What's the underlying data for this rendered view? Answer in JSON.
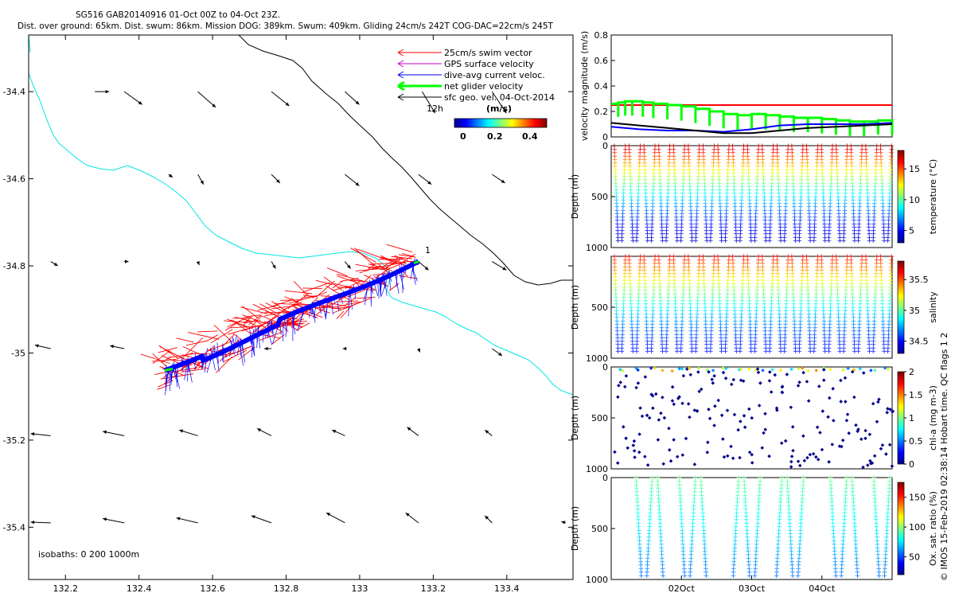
{
  "header": {
    "title_line1": "SG516 GAB20140916 01-Oct 00Z to 04-Oct 23Z.",
    "title_line2": "Dist. over ground: 65km. Dist. swum: 86km. Mission DOG: 389km. Swum: 409km. Gliding 24cm/s 242T COG-DAC=22cm/s 245T"
  },
  "footer": {
    "credit": "© IMOS 15-Feb-2019 02:38:14 Hobart time. QC flags 1  2"
  },
  "colors": {
    "swim_vector": "#ff0000",
    "gps_surface_velocity": "#cc00cc",
    "dive_avg_current": "#0000ff",
    "net_glider_velocity": "#00ff00",
    "geostrophic_velocity": "#000000",
    "isobath_0m": "#000000",
    "isobath_200m": "#00e6e6"
  },
  "chart_data": [
    {
      "id": "map",
      "type": "scatter",
      "title": "SG516 GAB20140916 01-Oct 00Z to 04-Oct 23Z.",
      "xlabel": "",
      "ylabel": "",
      "xlim": [
        132.1,
        133.58
      ],
      "ylim": [
        -35.52,
        -34.27
      ],
      "x_ticks": [
        "132.2",
        "132.4",
        "132.6",
        "132.8",
        "133",
        "133.2",
        "133.4"
      ],
      "y_ticks": [
        "-34.4",
        "-34.6",
        "-34.8",
        "-35",
        "-35.2",
        "-35.4"
      ],
      "legend": {
        "placement": "top-right",
        "entries": [
          "25cm/s swim vector",
          "GPS surface velocity",
          "dive-avg current veloc.",
          "net glider velocity",
          "sfc geo. vel. 04-Oct-2014"
        ]
      },
      "scale_label": "12h",
      "colorbar": {
        "label": "(m/s)",
        "ticks": [
          "0",
          "0.2",
          "0.4"
        ],
        "range": [
          0,
          0.5
        ]
      },
      "isobath_label": "isobaths: 0   200   1000m",
      "track_start_label": "1",
      "track": {
        "start": [
          133.16,
          -34.79
        ],
        "end": [
          132.47,
          -35.04
        ]
      },
      "geo_vectors": [
        {
          "x": 132.28,
          "y": -34.4,
          "u": 0.2,
          "v": 0.0
        },
        {
          "x": 132.36,
          "y": -34.4,
          "u": 0.25,
          "v": -0.18
        },
        {
          "x": 132.56,
          "y": -34.4,
          "u": 0.25,
          "v": -0.22
        },
        {
          "x": 132.76,
          "y": -34.4,
          "u": 0.25,
          "v": -0.2
        },
        {
          "x": 132.96,
          "y": -34.4,
          "u": 0.2,
          "v": -0.18
        },
        {
          "x": 133.17,
          "y": -34.4,
          "u": 0.18,
          "v": -0.3
        },
        {
          "x": 133.36,
          "y": -34.4,
          "u": 0.2,
          "v": -0.3
        },
        {
          "x": 132.48,
          "y": -34.59,
          "u": 0.06,
          "v": -0.04
        },
        {
          "x": 132.56,
          "y": -34.59,
          "u": 0.08,
          "v": -0.14
        },
        {
          "x": 132.76,
          "y": -34.59,
          "u": 0.12,
          "v": -0.12
        },
        {
          "x": 132.96,
          "y": -34.59,
          "u": 0.2,
          "v": -0.16
        },
        {
          "x": 133.16,
          "y": -34.59,
          "u": 0.18,
          "v": -0.14
        },
        {
          "x": 133.36,
          "y": -34.59,
          "u": 0.18,
          "v": -0.12
        },
        {
          "x": 132.16,
          "y": -34.79,
          "u": 0.1,
          "v": -0.06
        },
        {
          "x": 132.36,
          "y": -34.79,
          "u": 0.06,
          "v": 0.0
        },
        {
          "x": 132.56,
          "y": -34.79,
          "u": 0.02,
          "v": -0.05
        },
        {
          "x": 132.76,
          "y": -34.79,
          "u": 0.06,
          "v": -0.1
        },
        {
          "x": 132.96,
          "y": -34.79,
          "u": 0.08,
          "v": -0.1
        },
        {
          "x": 133.16,
          "y": -34.79,
          "u": 0.14,
          "v": -0.12
        },
        {
          "x": 133.36,
          "y": -34.79,
          "u": 0.2,
          "v": -0.12
        },
        {
          "x": 132.16,
          "y": -34.99,
          "u": -0.22,
          "v": 0.05
        },
        {
          "x": 132.36,
          "y": -34.99,
          "u": -0.2,
          "v": 0.04
        },
        {
          "x": 132.76,
          "y": -34.99,
          "u": -0.1,
          "v": 0.0
        },
        {
          "x": 132.96,
          "y": -34.99,
          "u": -0.03,
          "v": 0.0
        },
        {
          "x": 133.16,
          "y": -34.99,
          "u": 0.02,
          "v": -0.05
        },
        {
          "x": 133.36,
          "y": -34.99,
          "u": 0.14,
          "v": -0.1
        },
        {
          "x": 132.16,
          "y": -35.19,
          "u": -0.28,
          "v": 0.03
        },
        {
          "x": 132.36,
          "y": -35.19,
          "u": -0.3,
          "v": 0.06
        },
        {
          "x": 132.56,
          "y": -35.19,
          "u": -0.26,
          "v": 0.08
        },
        {
          "x": 132.76,
          "y": -35.19,
          "u": -0.2,
          "v": 0.1
        },
        {
          "x": 132.96,
          "y": -35.19,
          "u": -0.18,
          "v": 0.08
        },
        {
          "x": 133.16,
          "y": -35.19,
          "u": -0.16,
          "v": 0.12
        },
        {
          "x": 133.36,
          "y": -35.19,
          "u": -0.1,
          "v": 0.08
        },
        {
          "x": 132.16,
          "y": -35.39,
          "u": -0.28,
          "v": 0.01
        },
        {
          "x": 132.36,
          "y": -35.39,
          "u": -0.3,
          "v": 0.06
        },
        {
          "x": 132.56,
          "y": -35.39,
          "u": -0.3,
          "v": 0.07
        },
        {
          "x": 132.76,
          "y": -35.39,
          "u": -0.28,
          "v": 0.1
        },
        {
          "x": 132.96,
          "y": -35.39,
          "u": -0.26,
          "v": 0.14
        },
        {
          "x": 133.16,
          "y": -35.39,
          "u": -0.18,
          "v": 0.14
        },
        {
          "x": 133.36,
          "y": -35.39,
          "u": -0.1,
          "v": 0.1
        },
        {
          "x": 133.56,
          "y": -35.39,
          "u": -0.06,
          "v": 0.02
        }
      ]
    },
    {
      "id": "velocity",
      "type": "line",
      "ylabel": "velocity magnitude (m/s)",
      "ylim": [
        0,
        0.8
      ],
      "y_ticks": [
        "0",
        "0.2",
        "0.4",
        "0.6",
        "0.8"
      ],
      "xlim_days": [
        0,
        4
      ],
      "series": [
        {
          "color": "red",
          "x": [
            0,
            4.0
          ],
          "y": [
            0.25,
            0.25
          ]
        },
        {
          "color": "green",
          "x": [
            0,
            0.1,
            0.2,
            0.3,
            0.45,
            0.6,
            0.8,
            1.0,
            1.2,
            1.4,
            1.6,
            1.8,
            2.0,
            2.2,
            2.4,
            2.6,
            2.8,
            3.0,
            3.2,
            3.4,
            3.6,
            3.8,
            4.0
          ],
          "y": [
            0.26,
            0.27,
            0.28,
            0.28,
            0.27,
            0.26,
            0.25,
            0.24,
            0.22,
            0.2,
            0.18,
            0.17,
            0.18,
            0.17,
            0.16,
            0.15,
            0.15,
            0.14,
            0.13,
            0.12,
            0.12,
            0.13,
            0.13
          ]
        },
        {
          "color": "blue",
          "x": [
            0,
            0.4,
            0.8,
            1.2,
            1.6,
            2.0,
            2.4,
            2.8,
            3.2,
            3.6,
            4.0
          ],
          "y": [
            0.08,
            0.06,
            0.05,
            0.05,
            0.04,
            0.06,
            0.09,
            0.1,
            0.1,
            0.1,
            0.11
          ]
        },
        {
          "color": "black",
          "x": [
            0,
            0.4,
            0.8,
            1.2,
            1.6,
            2.0,
            2.4,
            2.8,
            3.2,
            3.6,
            4.0
          ],
          "y": [
            0.11,
            0.09,
            0.07,
            0.05,
            0.03,
            0.03,
            0.05,
            0.07,
            0.08,
            0.09,
            0.1
          ]
        }
      ]
    },
    {
      "id": "temperature",
      "type": "scatter",
      "ylabel": "Depth (m)",
      "ylim": [
        1000,
        0
      ],
      "y_ticks": [
        "0",
        "500",
        "1000"
      ],
      "colorbar": {
        "label": "temperature (°C)",
        "ticks": [
          "5",
          "10",
          "15"
        ],
        "range": [
          3,
          18
        ]
      },
      "profiles": 38,
      "surface_value": 17,
      "bottom_value": 4
    },
    {
      "id": "salinity",
      "type": "scatter",
      "ylabel": "Depth (m)",
      "ylim": [
        1000,
        0
      ],
      "y_ticks": [
        "500",
        "1000"
      ],
      "colorbar": {
        "label": "salinity",
        "ticks": [
          "34.5",
          "35",
          "35.5"
        ],
        "range": [
          34.3,
          35.8
        ]
      },
      "profiles": 38,
      "surface_value": 35.6,
      "bottom_value": 34.5
    },
    {
      "id": "chlorophyll",
      "type": "scatter",
      "ylabel": "Depth (m)",
      "ylim": [
        1000,
        0
      ],
      "y_ticks": [
        "0",
        "500",
        "1000"
      ],
      "colorbar": {
        "label": "chl-a (mg m-3)",
        "ticks": [
          "0",
          "0.5",
          "1",
          "1.5",
          "2"
        ],
        "range": [
          0,
          2
        ]
      },
      "profiles": 38,
      "surface_value": 1.0,
      "bottom_value": 0.0
    },
    {
      "id": "oxygen",
      "type": "scatter",
      "ylabel": "Depth (m)",
      "ylim": [
        1000,
        0
      ],
      "y_ticks": [
        "0",
        "500",
        "1000"
      ],
      "x_ticks": [
        "02Oct",
        "03Oct",
        "04Oct"
      ],
      "x_tick_days": [
        1,
        2,
        3
      ],
      "colorbar": {
        "label": "Ox. sat. ratio (%)",
        "ticks": [
          "50",
          "100",
          "150"
        ],
        "range": [
          20,
          175
        ]
      },
      "profiles": 26,
      "surface_value": 95,
      "bottom_value": 55
    }
  ]
}
